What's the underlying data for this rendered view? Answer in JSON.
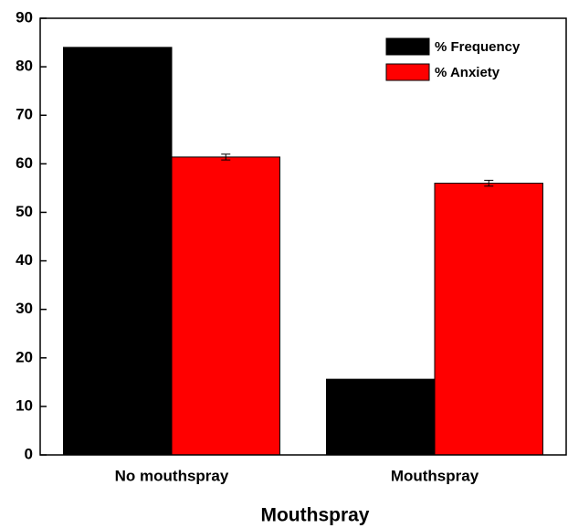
{
  "chart_data": {
    "type": "bar",
    "xlabel": "Mouthspray",
    "categories": [
      "No mouthspray",
      "Mouthspray"
    ],
    "series": [
      {
        "name": "% Frequency",
        "color": "#000000",
        "values": [
          84,
          15.6
        ]
      },
      {
        "name": "% Anxiety",
        "color": "#ff0000",
        "values": [
          61.4,
          56
        ],
        "errors": [
          0.6,
          0.6
        ]
      }
    ],
    "ylim": [
      0,
      90
    ],
    "yticks": [
      0,
      10,
      20,
      30,
      40,
      50,
      60,
      70,
      80,
      90
    ],
    "legend": "upper right"
  }
}
